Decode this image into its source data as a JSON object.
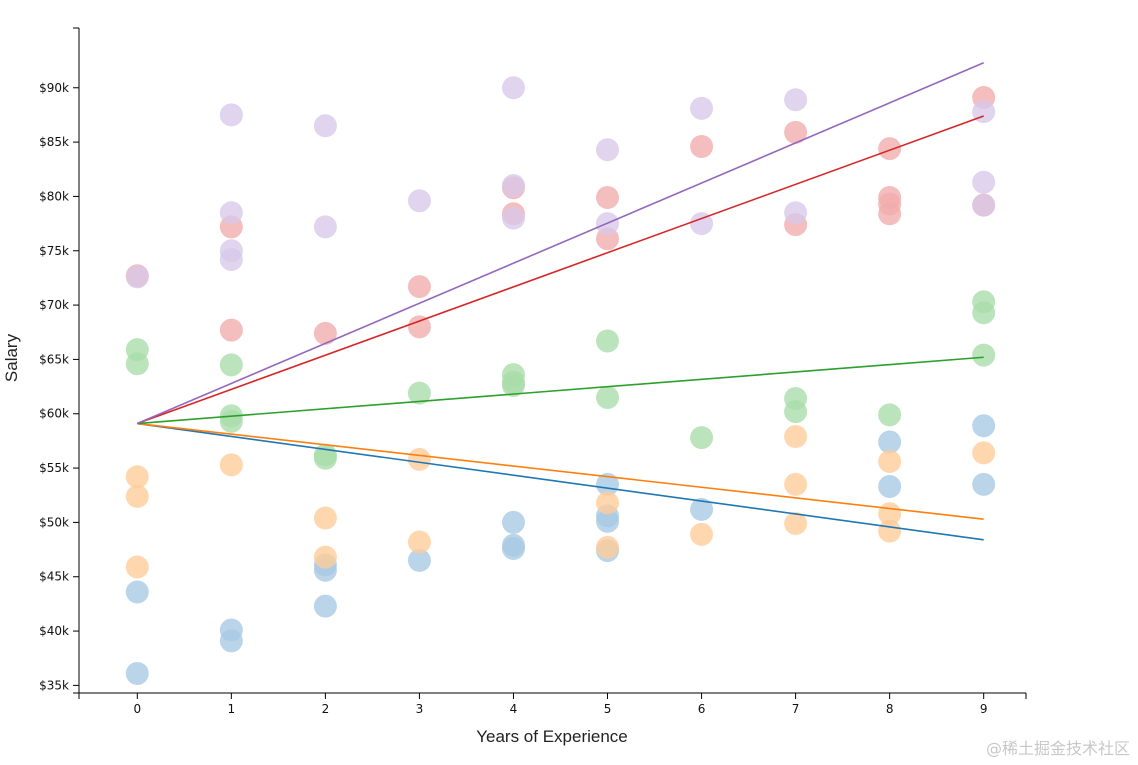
{
  "chart_data": {
    "type": "scatter",
    "xlabel": "Years of Experience",
    "ylabel": "Salary",
    "xlim": [
      -0.62,
      9.45
    ],
    "ylim": [
      34300,
      95500
    ],
    "x_ticks": [
      0,
      1,
      2,
      3,
      4,
      5,
      6,
      7,
      8,
      9
    ],
    "x_tick_labels": [
      "0",
      "1",
      "2",
      "3",
      "4",
      "5",
      "6",
      "7",
      "8",
      "9"
    ],
    "y_ticks": [
      35000,
      40000,
      45000,
      50000,
      55000,
      60000,
      65000,
      70000,
      75000,
      80000,
      85000,
      90000
    ],
    "y_tick_labels": [
      "$35k",
      "$40k",
      "$45k",
      "$50k",
      "$55k",
      "$60k",
      "$65k",
      "$70k",
      "$75k",
      "$80k",
      "$85k",
      "$90k"
    ],
    "series": [
      {
        "name": "blue",
        "color": "#1f77b4",
        "point_color": "#a6c9e3",
        "trend": {
          "x": [
            0,
            9
          ],
          "y": [
            59100,
            48400
          ]
        },
        "points": [
          [
            0,
            43600
          ],
          [
            0,
            36100
          ],
          [
            1,
            40100
          ],
          [
            1,
            39100
          ],
          [
            2,
            45600
          ],
          [
            2,
            46100
          ],
          [
            2,
            42300
          ],
          [
            3,
            46500
          ],
          [
            4,
            50000
          ],
          [
            4,
            47900
          ],
          [
            4,
            47600
          ],
          [
            5,
            53500
          ],
          [
            5,
            50600
          ],
          [
            5,
            50100
          ],
          [
            5,
            47400
          ],
          [
            6,
            51200
          ],
          [
            8,
            57400
          ],
          [
            8,
            53300
          ],
          [
            9,
            58900
          ],
          [
            9,
            53500
          ]
        ]
      },
      {
        "name": "orange",
        "color": "#ff7f0e",
        "point_color": "#ffcc99",
        "trend": {
          "x": [
            0,
            9
          ],
          "y": [
            59100,
            50300
          ]
        },
        "points": [
          [
            0,
            54200
          ],
          [
            0,
            52400
          ],
          [
            0,
            45900
          ],
          [
            1,
            55300
          ],
          [
            2,
            50400
          ],
          [
            2,
            46800
          ],
          [
            3,
            55800
          ],
          [
            3,
            48200
          ],
          [
            5,
            51800
          ],
          [
            5,
            47700
          ],
          [
            6,
            48900
          ],
          [
            7,
            57900
          ],
          [
            7,
            53500
          ],
          [
            7,
            49900
          ],
          [
            8,
            55600
          ],
          [
            8,
            50800
          ],
          [
            8,
            49200
          ],
          [
            9,
            56400
          ]
        ]
      },
      {
        "name": "green",
        "color": "#2ca02c",
        "point_color": "#a9dca9",
        "trend": {
          "x": [
            0,
            9
          ],
          "y": [
            59100,
            65200
          ]
        },
        "points": [
          [
            0,
            65900
          ],
          [
            0,
            64600
          ],
          [
            1,
            64500
          ],
          [
            1,
            59800
          ],
          [
            1,
            59300
          ],
          [
            2,
            56200
          ],
          [
            2,
            55900
          ],
          [
            3,
            61900
          ],
          [
            4,
            63600
          ],
          [
            4,
            62900
          ],
          [
            4,
            62600
          ],
          [
            5,
            66700
          ],
          [
            5,
            61500
          ],
          [
            6,
            57800
          ],
          [
            7,
            61400
          ],
          [
            7,
            60200
          ],
          [
            8,
            59900
          ],
          [
            9,
            70300
          ],
          [
            9,
            69300
          ],
          [
            9,
            65400
          ]
        ]
      },
      {
        "name": "red",
        "color": "#d62728",
        "point_color": "#f1acac",
        "trend": {
          "x": [
            0,
            9
          ],
          "y": [
            59100,
            87400
          ]
        },
        "points": [
          [
            0,
            72700
          ],
          [
            1,
            77200
          ],
          [
            1,
            67700
          ],
          [
            2,
            67400
          ],
          [
            3,
            71700
          ],
          [
            3,
            68000
          ],
          [
            4,
            80800
          ],
          [
            4,
            78400
          ],
          [
            5,
            79900
          ],
          [
            5,
            76100
          ],
          [
            6,
            84600
          ],
          [
            7,
            85900
          ],
          [
            7,
            77400
          ],
          [
            8,
            84400
          ],
          [
            8,
            79900
          ],
          [
            8,
            79300
          ],
          [
            8,
            78400
          ],
          [
            9,
            89100
          ],
          [
            9,
            79200
          ]
        ]
      },
      {
        "name": "purple",
        "color": "#9467bd",
        "point_color": "#d7c8e9",
        "trend": {
          "x": [
            0,
            9
          ],
          "y": [
            59100,
            92300
          ]
        },
        "points": [
          [
            0,
            72600
          ],
          [
            1,
            87500
          ],
          [
            1,
            78500
          ],
          [
            1,
            75000
          ],
          [
            1,
            74200
          ],
          [
            2,
            86500
          ],
          [
            2,
            77200
          ],
          [
            3,
            79600
          ],
          [
            4,
            90000
          ],
          [
            4,
            81000
          ],
          [
            4,
            78000
          ],
          [
            5,
            84300
          ],
          [
            5,
            77500
          ],
          [
            6,
            88100
          ],
          [
            6,
            77500
          ],
          [
            7,
            88900
          ],
          [
            7,
            78500
          ],
          [
            9,
            87800
          ],
          [
            9,
            81300
          ],
          [
            9,
            79200
          ]
        ]
      }
    ]
  },
  "watermark": "@稀土掘金技术社区"
}
